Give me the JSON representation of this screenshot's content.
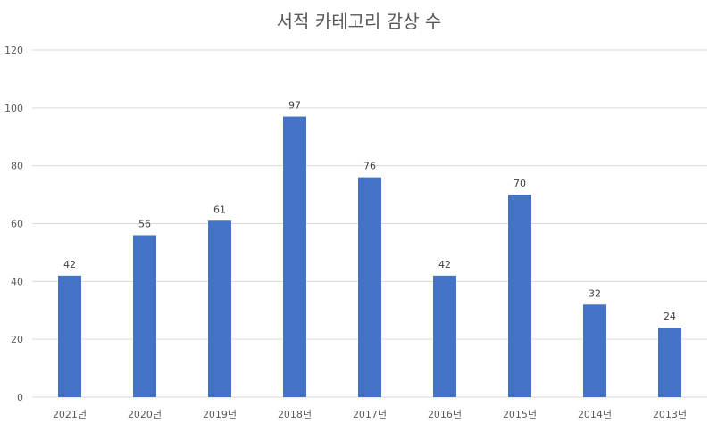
{
  "chart_data": {
    "type": "bar",
    "title": "서적 카테고리 감상 수",
    "categories": [
      "2021년",
      "2020년",
      "2019년",
      "2018년",
      "2017년",
      "2016년",
      "2015년",
      "2014년",
      "2013년"
    ],
    "values": [
      42,
      56,
      61,
      97,
      76,
      42,
      70,
      32,
      24
    ],
    "data_labels": [
      "42",
      "56",
      "61",
      "97",
      "76",
      "42",
      "70",
      "32",
      "24"
    ],
    "y_ticks": [
      "0",
      "20",
      "40",
      "60",
      "80",
      "100",
      "120"
    ],
    "ylim": [
      0,
      120
    ],
    "grid": true,
    "legend": "none",
    "bar_color": "#4472c4",
    "grid_color": "#d9d9d9",
    "text_color": "#595959"
  }
}
